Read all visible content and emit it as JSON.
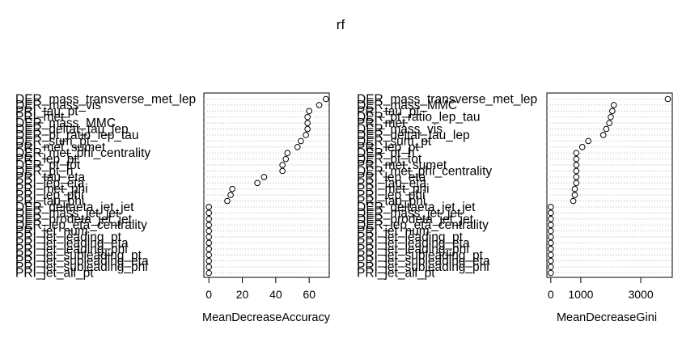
{
  "chart_data": [
    {
      "type": "scatter",
      "title": "rf",
      "xlabel": "MeanDecreaseAccuracy",
      "xticks": [
        0,
        20,
        40,
        60
      ],
      "xlim": [
        -3,
        72
      ],
      "grid": "dotted row guides",
      "categories": [
        "DER_mass_transverse_met_lep",
        "DER_mass_vis",
        "PRI_tau_pt",
        "PRI_met",
        "DER_mass_MMC",
        "DER_deltar_tau_lep",
        "DER_pt_ratio_lep_tau",
        "DER_sum_pt",
        "PRI_met_sumet",
        "DER_met_phi_centrality",
        "PRI_lep_pt",
        "DER_pt_tot",
        "DER_pt_h",
        "PRI_tau_eta",
        "PRI_lep_eta",
        "PRI_met_phi",
        "PRI_lep_phi",
        "PRI_tau_phi",
        "DER_deltaeta_jet_jet",
        "DER_mass_jet_jet",
        "DER_prodeta_jet_jet",
        "DER_lep_eta_centrality",
        "PRI_jet_num",
        "PRI_jet_leading_pt",
        "PRI_jet_leading_eta",
        "PRI_jet_leading_phi",
        "PRI_jet_subleading_pt",
        "PRI_jet_subleading_eta",
        "PRI_jet_subleading_phi",
        "PRI_jet_all_pt"
      ],
      "values": [
        70,
        66,
        60,
        59,
        59,
        59,
        58,
        55,
        53,
        47,
        46,
        44,
        44,
        33,
        29,
        14,
        13,
        11,
        0,
        0,
        0,
        0,
        0,
        0,
        0,
        0,
        0,
        0,
        0,
        0
      ]
    },
    {
      "type": "scatter",
      "xlabel": "MeanDecreaseGini",
      "xticks": [
        0,
        1000,
        3000
      ],
      "xlim": [
        -130,
        4050
      ],
      "grid": "dotted row guides",
      "categories": [
        "DER_mass_transverse_met_lep",
        "DER_mass_MMC",
        "PRI_tau_pt",
        "DER_pt_ratio_lep_tau",
        "PRI_met",
        "DER_mass_vis",
        "DER_deltar_tau_lep",
        "DER_sum_pt",
        "PRI_lep_pt",
        "DER_pt_h",
        "DER_pt_tot",
        "PRI_met_sumet",
        "DER_met_phi_centrality",
        "PRI_lep_eta",
        "PRI_tau_eta",
        "PRI_met_phi",
        "PRI_lep_phi",
        "PRI_tau_phi",
        "DER_deltaeta_jet_jet",
        "DER_mass_jet_jet",
        "DER_prodeta_jet_jet",
        "DER_lep_eta_centrality",
        "PRI_jet_num",
        "PRI_jet_leading_pt",
        "PRI_jet_leading_eta",
        "PRI_jet_leading_phi",
        "PRI_jet_subleading_pt",
        "PRI_jet_subleading_eta",
        "PRI_jet_subleading_phi",
        "PRI_jet_all_pt"
      ],
      "values": [
        3900,
        2100,
        2050,
        2000,
        1950,
        1850,
        1750,
        1250,
        1050,
        850,
        850,
        850,
        850,
        850,
        850,
        800,
        800,
        750,
        0,
        0,
        0,
        0,
        0,
        0,
        0,
        0,
        0,
        0,
        0,
        0
      ]
    }
  ]
}
